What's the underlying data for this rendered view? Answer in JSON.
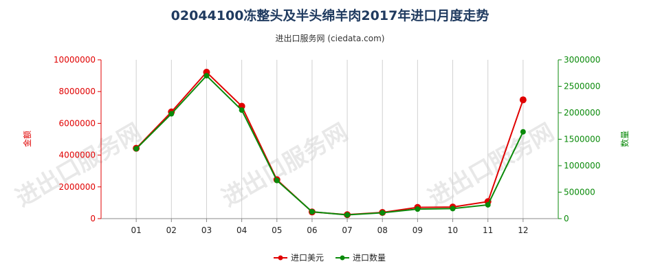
{
  "chart_data": {
    "type": "line",
    "title": "02044100冻整头及半头绵羊肉2017年进口月度走势",
    "subtitle": "进出口服务网 (ciedata.com)",
    "watermark": "进出口服务网",
    "categories": [
      "01",
      "02",
      "03",
      "04",
      "05",
      "06",
      "07",
      "08",
      "09",
      "10",
      "11",
      "12"
    ],
    "series": [
      {
        "name": "进口美元",
        "axis": "left",
        "color": "#e00000",
        "values": [
          4430000,
          6720000,
          9220000,
          7080000,
          2450000,
          420000,
          250000,
          390000,
          710000,
          730000,
          1070000,
          7480000
        ]
      },
      {
        "name": "进口数量",
        "axis": "right",
        "color": "#0a8a0a",
        "values": [
          1320000,
          1980000,
          2700000,
          2050000,
          720000,
          130000,
          70000,
          110000,
          180000,
          190000,
          260000,
          1640000
        ]
      }
    ],
    "y_left": {
      "label": "金额",
      "range": [
        0,
        10000000
      ],
      "ticks": [
        "0",
        "2000000",
        "4000000",
        "6000000",
        "8000000",
        "10000000"
      ]
    },
    "y_right": {
      "label": "数量",
      "range": [
        0,
        3000000
      ],
      "ticks": [
        "0",
        "500000",
        "1000000",
        "1500000",
        "2000000",
        "2500000",
        "3000000"
      ]
    },
    "grid": "vertical",
    "legend": "bottom-center"
  }
}
